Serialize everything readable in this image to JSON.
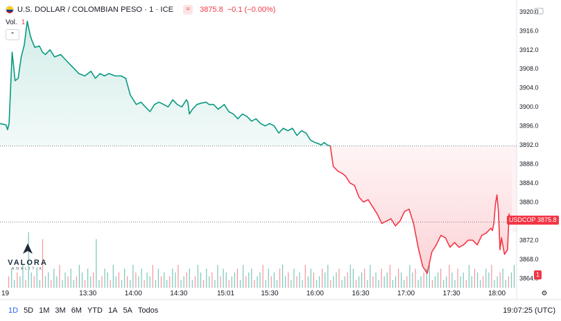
{
  "header": {
    "title": "U.S. DOLLAR / COLOMBIAN PESO · 1 · ICE",
    "price": "3875.8",
    "change": "−0.1 (−0.00%)",
    "market_icon": "≈"
  },
  "volume": {
    "label": "Vol.",
    "value": "1"
  },
  "logo": {
    "name": "VALORA",
    "sub": "ANALITIK"
  },
  "price_tag": {
    "symbol": "USDCOP",
    "value": "3875.8"
  },
  "volume_tag": "1",
  "ranges": [
    "1D",
    "5D",
    "1M",
    "3M",
    "6M",
    "YTD",
    "1A",
    "5A",
    "Todos"
  ],
  "active_range": "1D",
  "clock": "19:07:25 (UTC)",
  "colors": {
    "up": "#089981",
    "down": "#f23645",
    "up_fill": "#e8f5f1",
    "down_fill": "#fde8ea"
  },
  "chart_data": {
    "type": "area",
    "baseline": 3891.8,
    "ylim": [
      3862,
      3921
    ],
    "yticks": [
      3864.0,
      3868.0,
      3872.0,
      3876.0,
      3880.0,
      3884.0,
      3888.0,
      3892.0,
      3896.0,
      3900.0,
      3904.0,
      3908.0,
      3912.0,
      3916.0,
      3920.0
    ],
    "xticks": [
      "19",
      "13:30",
      "14:00",
      "14:30",
      "15:01",
      "15:30",
      "16:00",
      "16:30",
      "17:00",
      "17:30",
      "18:00"
    ],
    "xtick_minutes": [
      752,
      810,
      840,
      870,
      901,
      930,
      960,
      990,
      1020,
      1050,
      1080
    ],
    "x_range": [
      752,
      1093
    ],
    "series": [
      {
        "x": [
          752,
          756,
          757,
          758,
          760,
          762,
          764,
          766,
          768,
          770,
          772,
          773,
          775,
          778,
          780,
          782,
          785,
          788,
          792,
          795,
          798,
          801,
          804,
          808,
          812,
          815,
          818,
          821,
          824,
          828,
          832,
          835,
          838,
          842,
          845,
          848,
          851,
          854,
          857,
          860,
          863,
          866,
          869,
          872,
          875,
          876,
          877,
          879,
          882,
          885,
          888,
          890,
          893,
          896,
          900,
          903,
          906,
          909,
          912,
          915,
          918,
          921,
          924,
          927,
          930,
          933,
          936,
          939,
          942,
          945,
          948,
          951,
          954,
          957,
          960,
          962,
          964,
          966,
          968,
          970,
          972,
          975,
          978,
          980,
          983,
          986,
          989,
          992,
          995,
          998,
          1001,
          1004,
          1007,
          1010,
          1013,
          1016,
          1019,
          1022,
          1025,
          1028,
          1031,
          1034,
          1037,
          1040,
          1043,
          1046,
          1049,
          1052,
          1055,
          1058,
          1061,
          1064,
          1067,
          1070,
          1073,
          1076,
          1077,
          1078,
          1079,
          1080,
          1081,
          1082,
          1083,
          1085,
          1087,
          1088,
          1089,
          1090
        ],
        "values": [
          3896.5,
          3896.2,
          3895.2,
          3896.5,
          3911.5,
          3905.5,
          3906.0,
          3910.5,
          3913.0,
          3918.0,
          3915.0,
          3914.0,
          3912.5,
          3912.8,
          3911.5,
          3911.0,
          3912.0,
          3910.5,
          3911.0,
          3910.0,
          3909.0,
          3908.0,
          3907.0,
          3906.5,
          3907.5,
          3906.0,
          3907.0,
          3906.5,
          3907.0,
          3906.5,
          3906.5,
          3906.0,
          3902.5,
          3900.5,
          3901.0,
          3900.0,
          3899.0,
          3900.5,
          3901.0,
          3900.5,
          3900.0,
          3901.5,
          3900.5,
          3900.0,
          3901.5,
          3901.0,
          3898.5,
          3899.5,
          3900.5,
          3900.8,
          3901.0,
          3900.5,
          3900.5,
          3899.5,
          3900.5,
          3899.0,
          3898.5,
          3897.5,
          3898.5,
          3898.0,
          3897.0,
          3897.5,
          3896.5,
          3896.0,
          3896.5,
          3896.0,
          3894.5,
          3895.5,
          3895.0,
          3895.5,
          3894.0,
          3895.0,
          3894.5,
          3893.0,
          3892.5,
          3892.3,
          3892.0,
          3892.5,
          3892.0,
          3891.8,
          3887.5,
          3886.5,
          3886.0,
          3885.5,
          3884.0,
          3883.5,
          3881.0,
          3880.0,
          3880.5,
          3879.0,
          3877.5,
          3875.5,
          3876.0,
          3876.5,
          3875.0,
          3876.0,
          3878.0,
          3878.5,
          3875.5,
          3870.5,
          3866.5,
          3865.0,
          3869.5,
          3871.0,
          3873.0,
          3872.5,
          3870.5,
          3871.5,
          3870.5,
          3871.0,
          3872.0,
          3872.0,
          3871.0,
          3873.0,
          3873.5,
          3874.5,
          3874.0,
          3875.5,
          3879.5,
          3881.5,
          3878.0,
          3870.0,
          3872.5,
          3869.0,
          3870.0,
          3877.5,
          3875.8,
          3875.8
        ]
      }
    ],
    "volume": {
      "bars": [
        3,
        5,
        2,
        4,
        3,
        6,
        2,
        8,
        4,
        3,
        5,
        2,
        7,
        3,
        4,
        2,
        5,
        3,
        6,
        2,
        4,
        3,
        5,
        2,
        3,
        6,
        4,
        2,
        5,
        3,
        4,
        7,
        2,
        3,
        5,
        4,
        2,
        6,
        3,
        4,
        2,
        5,
        3,
        2,
        6,
        4,
        3,
        5,
        2,
        4,
        3,
        6,
        2,
        5,
        3,
        4,
        2,
        3,
        5,
        4,
        6,
        2,
        3,
        4,
        5,
        2,
        3,
        6,
        4,
        2,
        5,
        3,
        4,
        2,
        6,
        3,
        5,
        4,
        2,
        3,
        4,
        5,
        2,
        6,
        3,
        4,
        5,
        2,
        3,
        4,
        6,
        2,
        5,
        3,
        4,
        2,
        5,
        6,
        3,
        4,
        2,
        5,
        3,
        4,
        2,
        6,
        3,
        5,
        4,
        2,
        3,
        5,
        4,
        6,
        2,
        3,
        4,
        5,
        2,
        3,
        4,
        6,
        5,
        2,
        3,
        4,
        5,
        2,
        6,
        3,
        4,
        2,
        5,
        3,
        4,
        6,
        2,
        3,
        5,
        4,
        2,
        3,
        6,
        4,
        5,
        2,
        3,
        4,
        5,
        6,
        2,
        3,
        4,
        5,
        2,
        3,
        6,
        4,
        2,
        5,
        3,
        4,
        2,
        6,
        3,
        5,
        4,
        2,
        3,
        5,
        4,
        6,
        2,
        3,
        4,
        5,
        2,
        3,
        4,
        6
      ],
      "max": 8
    }
  }
}
